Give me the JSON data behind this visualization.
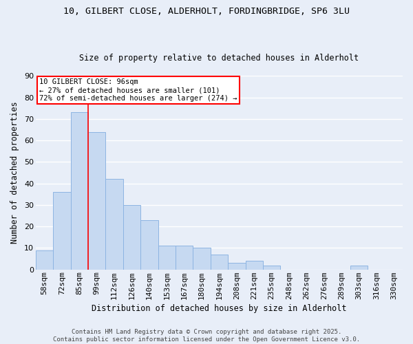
{
  "title_line1": "10, GILBERT CLOSE, ALDERHOLT, FORDINGBRIDGE, SP6 3LU",
  "title_line2": "Size of property relative to detached houses in Alderholt",
  "xlabel": "Distribution of detached houses by size in Alderholt",
  "ylabel": "Number of detached properties",
  "categories": [
    "58sqm",
    "72sqm",
    "85sqm",
    "99sqm",
    "112sqm",
    "126sqm",
    "140sqm",
    "153sqm",
    "167sqm",
    "180sqm",
    "194sqm",
    "208sqm",
    "221sqm",
    "235sqm",
    "248sqm",
    "262sqm",
    "276sqm",
    "289sqm",
    "303sqm",
    "316sqm",
    "330sqm"
  ],
  "values": [
    9,
    36,
    73,
    64,
    42,
    30,
    23,
    11,
    11,
    10,
    7,
    3,
    4,
    2,
    0,
    0,
    0,
    0,
    2,
    0,
    0
  ],
  "bar_color": "#c6d9f1",
  "bar_edge_color": "#8db4e2",
  "vline_x": 2.5,
  "vline_color": "red",
  "annotation_text": "10 GILBERT CLOSE: 96sqm\n← 27% of detached houses are smaller (101)\n72% of semi-detached houses are larger (274) →",
  "annotation_box_color": "white",
  "annotation_box_edge": "red",
  "ylim": [
    0,
    90
  ],
  "yticks": [
    0,
    10,
    20,
    30,
    40,
    50,
    60,
    70,
    80,
    90
  ],
  "footer_line1": "Contains HM Land Registry data © Crown copyright and database right 2025.",
  "footer_line2": "Contains public sector information licensed under the Open Government Licence v3.0.",
  "bg_color": "#e8eef8",
  "grid_color": "white",
  "title_fontsize": 9.5,
  "subtitle_fontsize": 8.5,
  "xlabel_fontsize": 8.5,
  "ylabel_fontsize": 8.5,
  "tick_fontsize": 8,
  "annotation_fontsize": 7.5,
  "footer_fontsize": 6.5
}
